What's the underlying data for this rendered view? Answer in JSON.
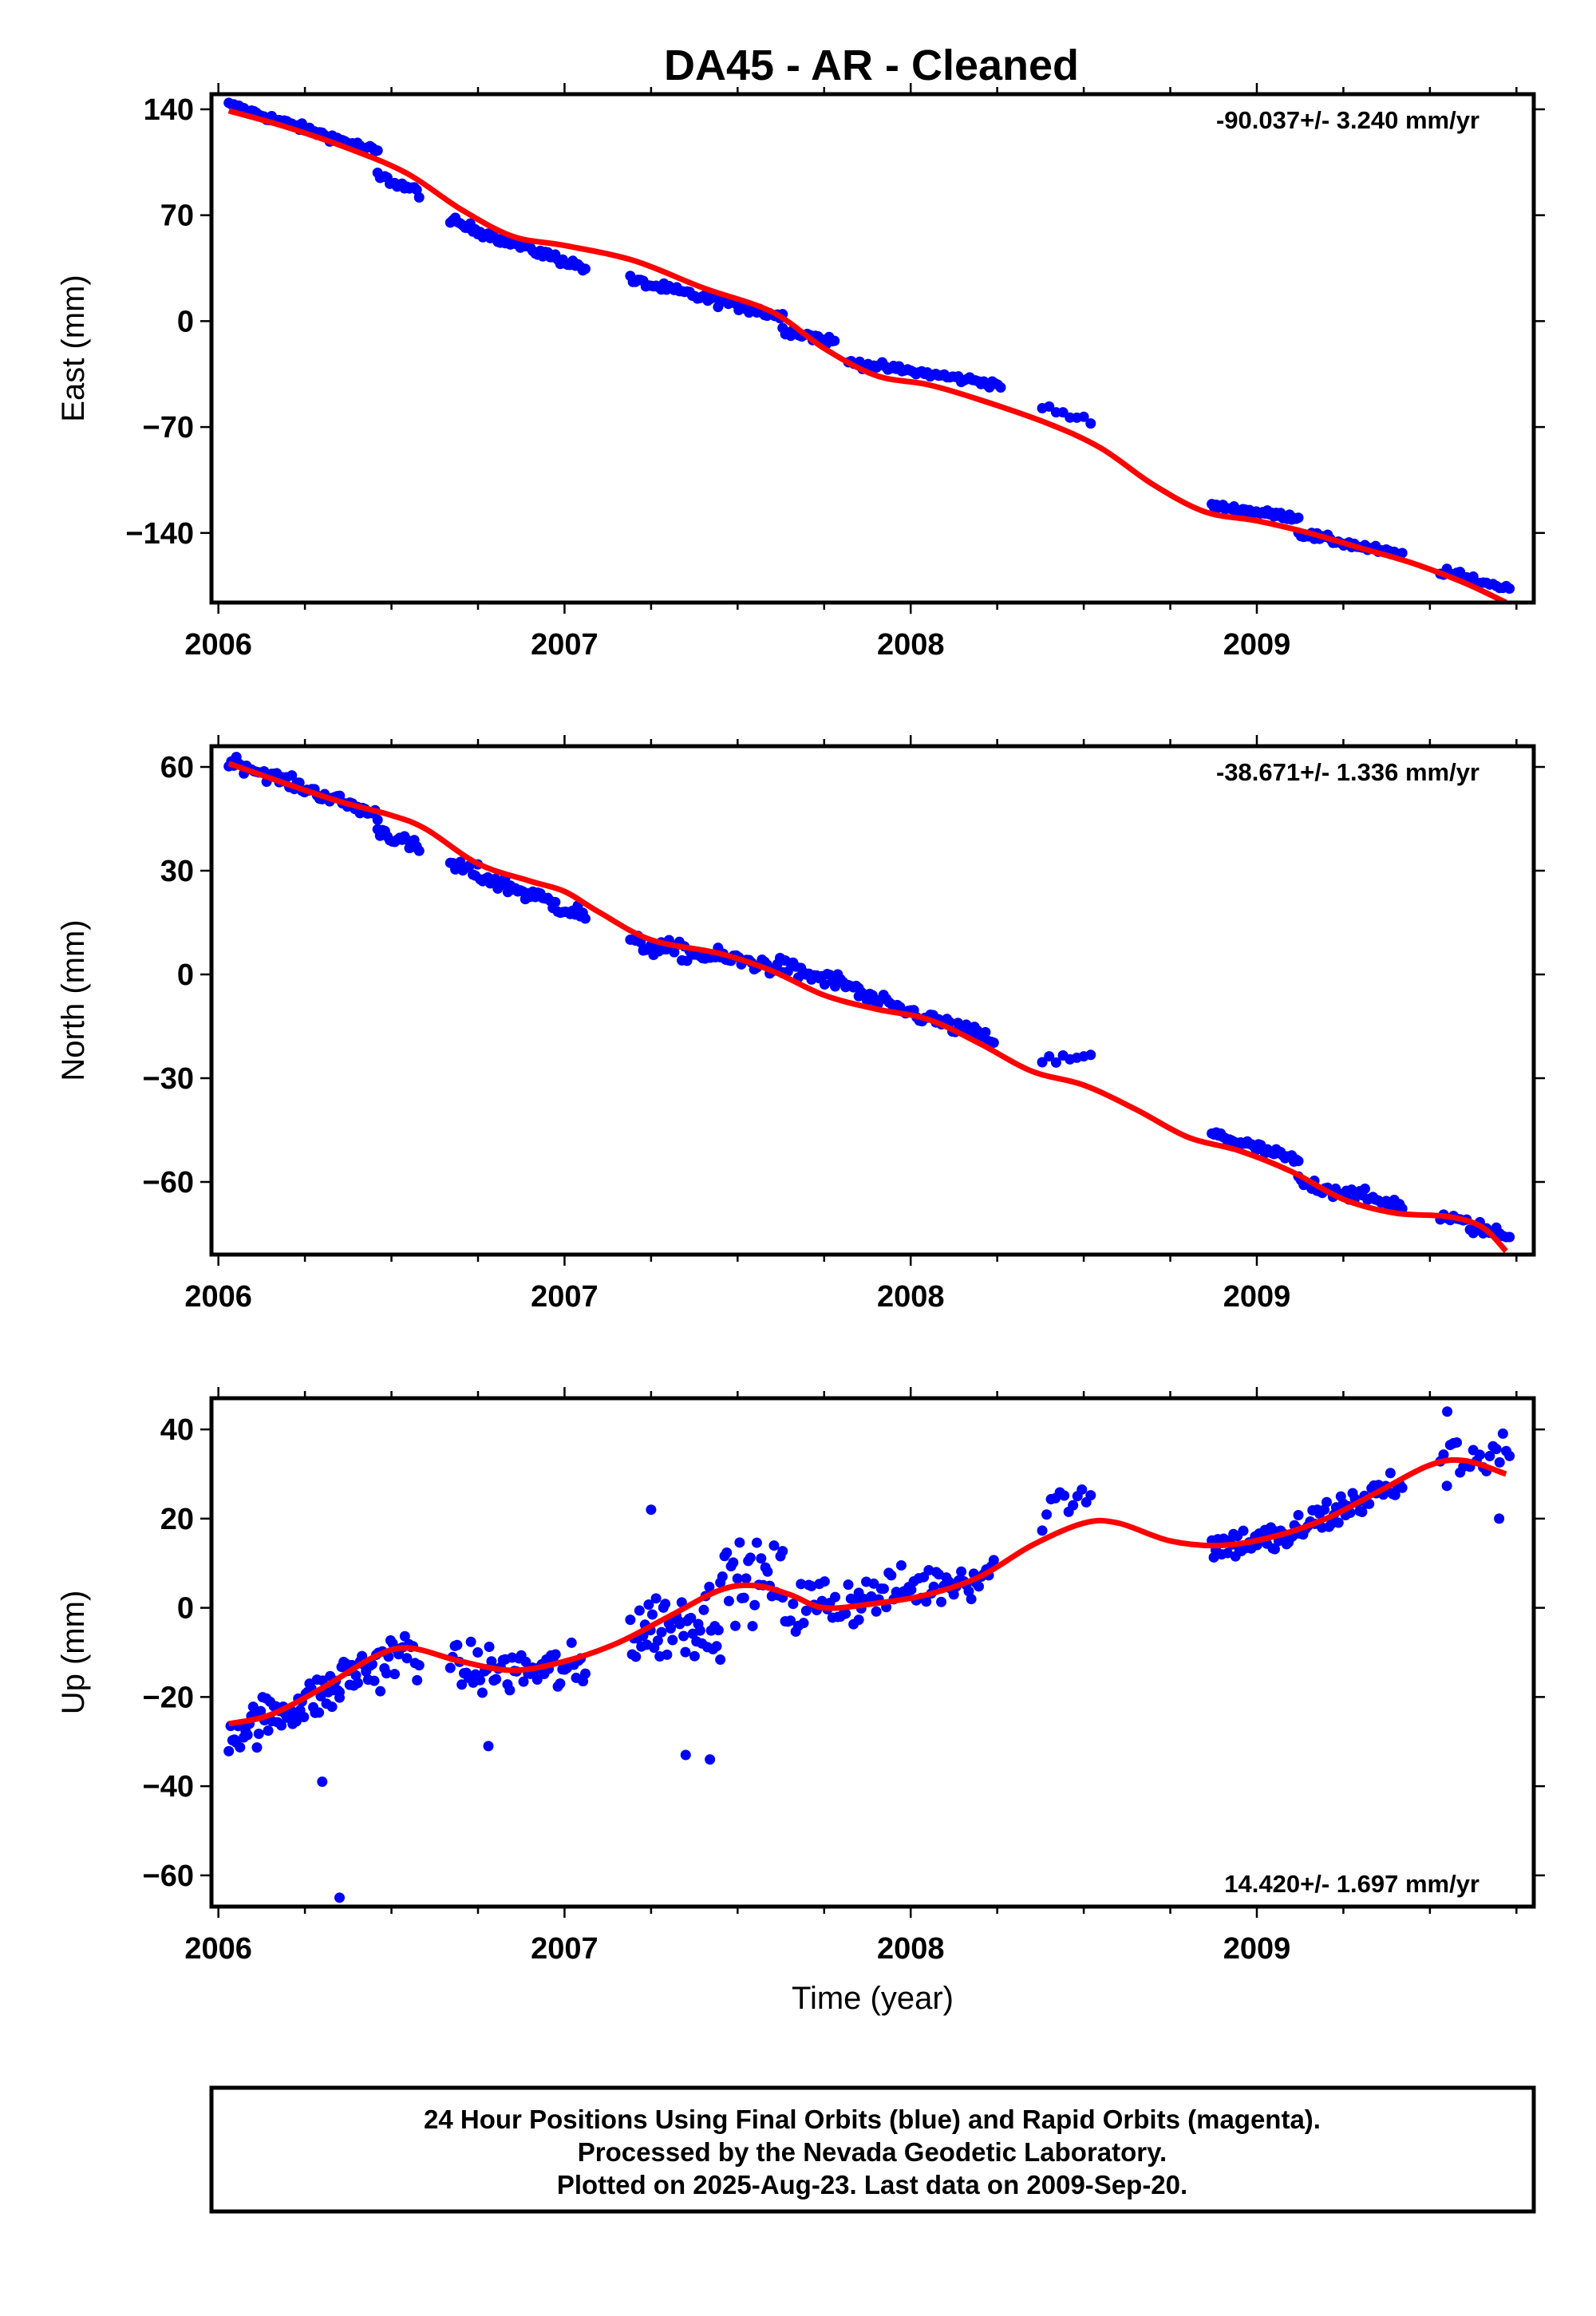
{
  "title": "DA45  - AR - Cleaned",
  "chart_data": [
    {
      "type": "scatter",
      "ylabel": "East (mm)",
      "xlabel": "",
      "xlim": [
        2005.98,
        2009.8
      ],
      "ylim": [
        -186,
        150
      ],
      "yticks": [
        140,
        70,
        0,
        -70,
        -140
      ],
      "xticks": [
        2006,
        2007,
        2008,
        2009
      ],
      "rate_label": "-90.037+/- 3.240 mm/yr",
      "rate_position": "top-right",
      "series": [
        {
          "kind": "points",
          "color": "#0000ff",
          "segments": [
            {
              "t0": 2006.03,
              "t1": 2006.46,
              "y0": 143,
              "y1": 112,
              "noise": 2.5,
              "n": 60
            },
            {
              "t0": 2006.46,
              "t1": 2006.58,
              "y0": 96,
              "y1": 85,
              "noise": 3,
              "n": 18
            },
            {
              "t0": 2006.67,
              "t1": 2007.06,
              "y0": 66,
              "y1": 35,
              "noise": 3,
              "n": 55
            },
            {
              "t0": 2007.19,
              "t1": 2007.63,
              "y0": 27,
              "y1": 3,
              "noise": 3,
              "n": 60
            },
            {
              "t0": 2007.63,
              "t1": 2007.78,
              "y0": -5,
              "y1": -14,
              "noise": 3,
              "n": 20
            },
            {
              "t0": 2007.82,
              "t1": 2008.26,
              "y0": -27,
              "y1": -42,
              "noise": 2.5,
              "n": 55
            },
            {
              "t0": 2008.38,
              "t1": 2008.52,
              "y0": -58,
              "y1": -66,
              "noise": 2.5,
              "n": 8
            },
            {
              "t0": 2008.87,
              "t1": 2009.12,
              "y0": -122,
              "y1": -130,
              "noise": 2,
              "n": 40
            },
            {
              "t0": 2009.12,
              "t1": 2009.42,
              "y0": -140,
              "y1": -155,
              "noise": 2.5,
              "n": 40
            },
            {
              "t0": 2009.53,
              "t1": 2009.73,
              "y0": -165,
              "y1": -177,
              "noise": 2.5,
              "n": 22
            }
          ]
        },
        {
          "kind": "line",
          "color": "#ff0000",
          "x": [
            2006.03,
            2006.2,
            2006.4,
            2006.55,
            2006.7,
            2006.85,
            2007.0,
            2007.2,
            2007.4,
            2007.6,
            2007.75,
            2007.9,
            2008.05,
            2008.2,
            2008.4,
            2008.55,
            2008.7,
            2008.85,
            2009.0,
            2009.15,
            2009.3,
            2009.45,
            2009.6,
            2009.72
          ],
          "y": [
            139,
            128,
            112,
            97,
            74,
            56,
            50,
            40,
            22,
            6,
            -18,
            -36,
            -42,
            -52,
            -68,
            -84,
            -108,
            -126,
            -132,
            -140,
            -150,
            -160,
            -173,
            -186
          ]
        }
      ]
    },
    {
      "type": "scatter",
      "ylabel": "North (mm)",
      "xlabel": "",
      "xlim": [
        2005.98,
        2009.8
      ],
      "ylim": [
        -81,
        66
      ],
      "yticks": [
        60,
        30,
        0,
        -30,
        -60
      ],
      "xticks": [
        2006,
        2007,
        2008,
        2009
      ],
      "rate_label": "-38.671+/- 1.336 mm/yr",
      "rate_position": "top-right",
      "series": [
        {
          "kind": "points",
          "color": "#0000ff",
          "segments": [
            {
              "t0": 2006.03,
              "t1": 2006.46,
              "y0": 62,
              "y1": 46,
              "noise": 1.8,
              "n": 60
            },
            {
              "t0": 2006.46,
              "t1": 2006.58,
              "y0": 42,
              "y1": 36,
              "noise": 2,
              "n": 18
            },
            {
              "t0": 2006.67,
              "t1": 2007.06,
              "y0": 32,
              "y1": 17,
              "noise": 2.5,
              "n": 55
            },
            {
              "t0": 2007.19,
              "t1": 2007.63,
              "y0": 9,
              "y1": 2,
              "noise": 2.5,
              "n": 60
            },
            {
              "t0": 2007.63,
              "t1": 2007.85,
              "y0": 2,
              "y1": -4,
              "noise": 2.5,
              "n": 30
            },
            {
              "t0": 2007.85,
              "t1": 2008.24,
              "y0": -6,
              "y1": -19,
              "noise": 2,
              "n": 50
            },
            {
              "t0": 2008.38,
              "t1": 2008.52,
              "y0": -25,
              "y1": -24,
              "noise": 1.5,
              "n": 8
            },
            {
              "t0": 2008.87,
              "t1": 2009.12,
              "y0": -46,
              "y1": -54,
              "noise": 1.5,
              "n": 40
            },
            {
              "t0": 2009.12,
              "t1": 2009.42,
              "y0": -60,
              "y1": -67,
              "noise": 2,
              "n": 40
            },
            {
              "t0": 2009.53,
              "t1": 2009.73,
              "y0": -70,
              "y1": -76,
              "noise": 2,
              "n": 22
            }
          ]
        },
        {
          "kind": "line",
          "color": "#ff0000",
          "x": [
            2006.03,
            2006.2,
            2006.35,
            2006.5,
            2006.6,
            2006.75,
            2006.9,
            2007.0,
            2007.1,
            2007.25,
            2007.45,
            2007.6,
            2007.75,
            2007.9,
            2008.05,
            2008.2,
            2008.35,
            2008.5,
            2008.65,
            2008.8,
            2008.95,
            2009.1,
            2009.25,
            2009.4,
            2009.55,
            2009.65,
            2009.72
          ],
          "y": [
            61,
            55,
            50,
            46,
            42,
            32,
            27,
            24,
            18,
            10,
            6,
            1,
            -6,
            -10,
            -13,
            -20,
            -28,
            -32,
            -39,
            -47,
            -51,
            -57,
            -65,
            -69,
            -70,
            -73,
            -80
          ]
        }
      ]
    },
    {
      "type": "scatter",
      "ylabel": "Up (mm)",
      "xlabel": "Time (year)",
      "xlim": [
        2005.98,
        2009.8
      ],
      "ylim": [
        -67,
        47
      ],
      "yticks": [
        40,
        20,
        0,
        -20,
        -40,
        -60
      ],
      "xticks": [
        2006,
        2007,
        2008,
        2009
      ],
      "rate_label": "14.420+/- 1.697 mm/yr",
      "rate_position": "bottom-right",
      "series": [
        {
          "kind": "points",
          "color": "#0000ff",
          "segments": [
            {
              "t0": 2006.03,
              "t1": 2006.35,
              "y0": -28,
              "y1": -18,
              "noise": 5,
              "n": 60
            },
            {
              "t0": 2006.35,
              "t1": 2006.58,
              "y0": -16,
              "y1": -9,
              "noise": 6,
              "n": 40
            },
            {
              "t0": 2006.67,
              "t1": 2007.06,
              "y0": -14,
              "y1": -14,
              "noise": 5.5,
              "n": 60
            },
            {
              "t0": 2007.19,
              "t1": 2007.45,
              "y0": -5,
              "y1": -2,
              "noise": 8,
              "n": 50
            },
            {
              "t0": 2007.45,
              "t1": 2007.63,
              "y0": 6,
              "y1": 6,
              "noise": 8,
              "n": 30
            },
            {
              "t0": 2007.63,
              "t1": 2007.85,
              "y0": 0,
              "y1": 2,
              "noise": 7,
              "n": 30
            },
            {
              "t0": 2007.85,
              "t1": 2008.24,
              "y0": 2,
              "y1": 8,
              "noise": 5,
              "n": 55
            },
            {
              "t0": 2008.38,
              "t1": 2008.52,
              "y0": 22,
              "y1": 27,
              "noise": 5,
              "n": 12
            },
            {
              "t0": 2008.87,
              "t1": 2009.12,
              "y0": 14,
              "y1": 16,
              "noise": 3.5,
              "n": 45
            },
            {
              "t0": 2009.12,
              "t1": 2009.42,
              "y0": 18,
              "y1": 28,
              "noise": 4,
              "n": 45
            },
            {
              "t0": 2009.53,
              "t1": 2009.73,
              "y0": 32,
              "y1": 36,
              "noise": 5,
              "n": 22
            }
          ],
          "extras": [
            [
              2006.35,
              -65
            ],
            [
              2007.35,
              -33
            ],
            [
              2007.42,
              -34
            ],
            [
              2006.3,
              -39
            ],
            [
              2007.25,
              22
            ],
            [
              2009.55,
              44
            ],
            [
              2009.7,
              20
            ],
            [
              2006.78,
              -31
            ]
          ]
        },
        {
          "kind": "line",
          "color": "#ff0000",
          "x": [
            2006.03,
            2006.15,
            2006.3,
            2006.45,
            2006.55,
            2006.7,
            2006.85,
            2007.0,
            2007.15,
            2007.3,
            2007.45,
            2007.55,
            2007.65,
            2007.75,
            2007.9,
            2008.05,
            2008.2,
            2008.35,
            2008.5,
            2008.6,
            2008.75,
            2008.9,
            2009.05,
            2009.2,
            2009.35,
            2009.5,
            2009.6,
            2009.72
          ],
          "y": [
            -26,
            -24,
            -18,
            -11,
            -9,
            -12,
            -14,
            -12,
            -8,
            -2,
            4,
            5,
            3,
            0,
            1,
            3,
            7,
            14,
            19,
            19,
            15,
            14,
            16,
            20,
            26,
            32,
            33,
            30
          ]
        }
      ]
    }
  ],
  "footer": {
    "line1": "24 Hour Positions Using Final Orbits (blue) and Rapid Orbits (magenta).",
    "line2": "Processed by the Nevada Geodetic Laboratory.",
    "line3": "Plotted on 2025-Aug-23. Last data on 2009-Sep-20."
  }
}
